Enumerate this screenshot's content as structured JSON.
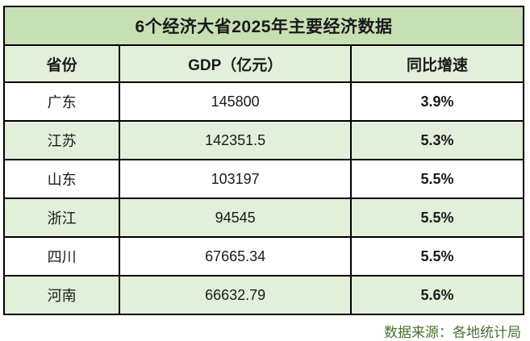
{
  "title": "6个经济大省2025年主要经济数据",
  "table": {
    "headers": [
      "省份",
      "GDP（亿元）",
      "同比增速"
    ],
    "rows": [
      {
        "province": "广东",
        "gdp": "145800",
        "growth": "3.9%"
      },
      {
        "province": "江苏",
        "gdp": "142351.5",
        "growth": "5.3%"
      },
      {
        "province": "山东",
        "gdp": "103197",
        "growth": "5.5%"
      },
      {
        "province": "浙江",
        "gdp": "94545",
        "growth": "5.5%"
      },
      {
        "province": "四川",
        "gdp": "67665.34",
        "growth": "5.5%"
      },
      {
        "province": "河南",
        "gdp": "66632.79",
        "growth": "5.6%"
      }
    ]
  },
  "footer": {
    "source": "数据来源：各地统计局"
  },
  "colors": {
    "title_bg": "#c6e0b4",
    "alt_row_bg": "#e2efda",
    "border": "#000000",
    "source_text": "#4a7030"
  },
  "chart_data": {
    "type": "table",
    "title": "6个经济大省2025年主要经济数据",
    "columns": [
      "省份",
      "GDP（亿元）",
      "同比增速"
    ],
    "rows": [
      [
        "广东",
        145800,
        "3.9%"
      ],
      [
        "江苏",
        142351.5,
        "5.3%"
      ],
      [
        "山东",
        103197,
        "5.5%"
      ],
      [
        "浙江",
        94545,
        "5.5%"
      ],
      [
        "四川",
        67665.34,
        "5.5%"
      ],
      [
        "河南",
        66632.79,
        "5.6%"
      ]
    ],
    "source_note": "数据来源：各地统计局"
  }
}
